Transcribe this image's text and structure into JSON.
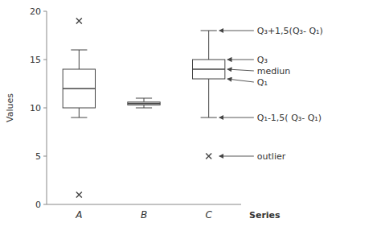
{
  "chart_data": {
    "type": "box",
    "categories": [
      "A",
      "B",
      "C"
    ],
    "boxes": [
      {
        "q1": 10.0,
        "median": 12.0,
        "q3": 14.0,
        "whislo": 9.0,
        "whishi": 16.0,
        "fliers": [
          1.0,
          19.0
        ]
      },
      {
        "q1": 10.3,
        "median": 10.45,
        "q3": 10.6,
        "whislo": 10.0,
        "whishi": 11.0,
        "fliers": []
      },
      {
        "q1": 13.0,
        "median": 14.0,
        "q3": 15.0,
        "whislo": 9.0,
        "whishi": 18.0,
        "fliers": [
          5.0
        ]
      }
    ],
    "ylim": [
      0,
      20
    ],
    "yticks": [
      0,
      5,
      10,
      15,
      20
    ],
    "ylabel": "Values",
    "xlabel": "Series",
    "color": "#444444",
    "marker": "x",
    "annotations": [
      {
        "text": "Q₃+1,5(Q₃- Q₁)",
        "y": 18.0
      },
      {
        "text": "Q₃",
        "y": 15.0
      },
      {
        "text": "mediun",
        "y": 14.0
      },
      {
        "text": "Q₁",
        "y": 13.0
      },
      {
        "text": "Q₁-1,5( Q₃- Q₁)",
        "y": 9.0
      },
      {
        "text": "outlier",
        "y": 5.0
      }
    ]
  }
}
